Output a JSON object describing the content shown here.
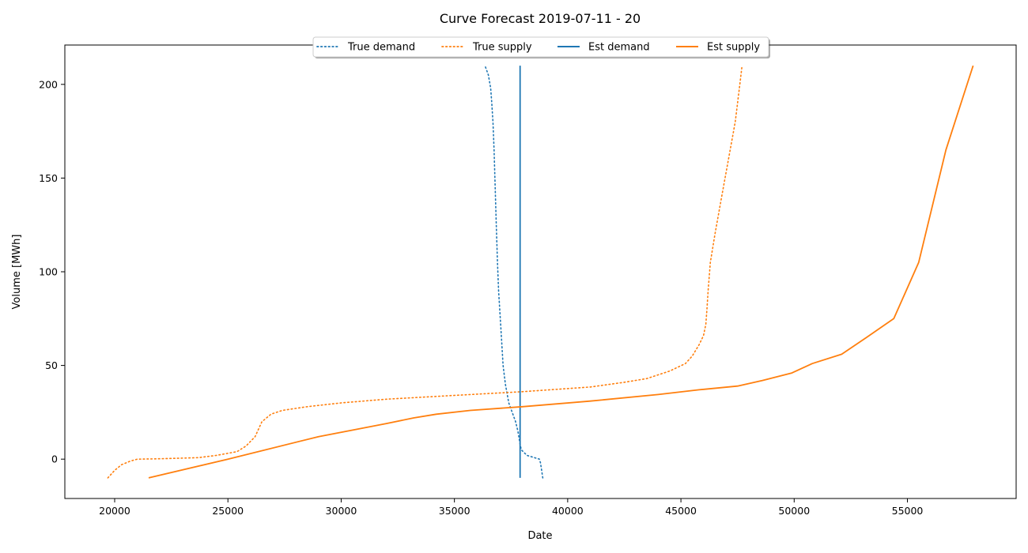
{
  "chart_data": {
    "type": "line",
    "title": "Curve Forecast 2019-07-11 - 20",
    "xlabel": "Date",
    "ylabel": "Volume [MWh]",
    "xlim": [
      17800,
      59800
    ],
    "ylim": [
      -21,
      221
    ],
    "xticks": [
      20000,
      25000,
      30000,
      35000,
      40000,
      45000,
      50000,
      55000
    ],
    "yticks": [
      0,
      50,
      100,
      150,
      200
    ],
    "grid": false,
    "legend": {
      "placement": "top-center",
      "columns": 4
    },
    "series": [
      {
        "name": "True demand",
        "color": "#1f77b4",
        "style": "dotted",
        "x": [
          38900,
          38800,
          38750,
          38200,
          37950,
          37900,
          37800,
          37700,
          37550,
          37400,
          37250,
          37150,
          37050,
          36950,
          36900,
          36850,
          36800,
          36750,
          36700,
          36650,
          36600,
          36500,
          36350
        ],
        "y": [
          -10,
          -2,
          0,
          2,
          5,
          8,
          15,
          20,
          25,
          30,
          40,
          50,
          70,
          90,
          105,
          125,
          145,
          165,
          180,
          190,
          198,
          205,
          210
        ]
      },
      {
        "name": "True supply",
        "color": "#ff7f0e",
        "style": "dotted",
        "x": [
          19700,
          20000,
          20300,
          20700,
          21000,
          22000,
          23700,
          24500,
          25400,
          25800,
          26200,
          26500,
          26900,
          27400,
          28500,
          30000,
          32000,
          35000,
          38000,
          41000,
          42500,
          43500,
          44500,
          45200,
          45500,
          45800,
          46000,
          46100,
          46150,
          46200,
          46300,
          46500,
          46800,
          47100,
          47400,
          47600,
          47700
        ],
        "y": [
          -10,
          -6,
          -3,
          -1,
          0,
          0.2,
          0.8,
          2,
          4,
          7,
          12,
          20,
          24,
          26,
          28,
          30,
          32,
          34,
          36,
          38.5,
          41,
          43,
          47,
          51,
          55,
          61,
          66,
          72,
          80,
          90,
          105,
          120,
          140,
          160,
          180,
          200,
          210
        ]
      },
      {
        "name": "Est demand",
        "color": "#1f77b4",
        "style": "solid",
        "x": [
          37900,
          37900
        ],
        "y": [
          -10,
          210
        ]
      },
      {
        "name": "Est supply",
        "color": "#ff7f0e",
        "style": "solid",
        "x": [
          21500,
          25000,
          29000,
          32000,
          33200,
          34200,
          35700,
          38000,
          41000,
          44000,
          45800,
          47500,
          48600,
          49900,
          50800,
          52100,
          53200,
          54400,
          55500,
          56700,
          57900
        ],
        "y": [
          -10,
          0,
          12,
          19,
          22,
          24,
          26,
          28,
          31,
          34.5,
          37,
          39,
          42,
          46,
          51,
          56,
          65,
          75,
          105,
          165,
          210
        ]
      }
    ]
  }
}
